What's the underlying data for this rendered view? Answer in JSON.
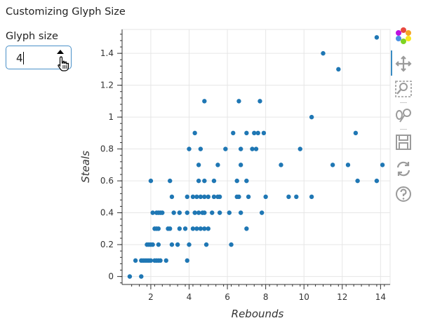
{
  "page": {
    "title": "Customizing Glyph Size"
  },
  "control": {
    "label": "Glyph size",
    "value": "4"
  },
  "colors": {
    "point": "#1f77b4",
    "grid": "#e6e6e6",
    "axis": "#333333",
    "toolbar_active": "#3a8cc3",
    "toolbar_icon": "#9b9b9b"
  },
  "toolbar": {
    "tools": [
      "bokeh-logo-icon",
      "pan-icon",
      "box-zoom-icon",
      "lasso-select-icon",
      "save-icon",
      "reset-icon",
      "help-icon"
    ],
    "active": "pan-icon"
  },
  "chart_data": {
    "type": "scatter",
    "title": "",
    "xlabel": "Rebounds",
    "ylabel": "Steals",
    "xlim": [
      0.5,
      14.5
    ],
    "ylim": [
      -0.05,
      1.55
    ],
    "xticks": [
      "2",
      "4",
      "6",
      "8",
      "10",
      "12",
      "14"
    ],
    "xtick_values": [
      2,
      4,
      6,
      8,
      10,
      12,
      14
    ],
    "yticks": [
      "0",
      "0.2",
      "0.4",
      "0.6",
      "0.8",
      "1",
      "1.2",
      "1.4"
    ],
    "ytick_values": [
      0,
      0.2,
      0.4,
      0.6,
      0.8,
      1.0,
      1.2,
      1.4
    ],
    "grid": true,
    "marker_size": 4,
    "points": [
      [
        0.9,
        0.0
      ],
      [
        1.5,
        0.0
      ],
      [
        1.2,
        0.1
      ],
      [
        1.5,
        0.1
      ],
      [
        1.6,
        0.1
      ],
      [
        1.7,
        0.1
      ],
      [
        1.8,
        0.1
      ],
      [
        1.9,
        0.1
      ],
      [
        2.0,
        0.1
      ],
      [
        2.2,
        0.1
      ],
      [
        2.3,
        0.1
      ],
      [
        2.4,
        0.1
      ],
      [
        2.5,
        0.1
      ],
      [
        2.8,
        0.1
      ],
      [
        3.9,
        0.1
      ],
      [
        1.8,
        0.2
      ],
      [
        1.9,
        0.2
      ],
      [
        2.0,
        0.2
      ],
      [
        2.1,
        0.2
      ],
      [
        2.4,
        0.2
      ],
      [
        3.1,
        0.2
      ],
      [
        3.4,
        0.2
      ],
      [
        4.0,
        0.2
      ],
      [
        4.9,
        0.2
      ],
      [
        6.2,
        0.2
      ],
      [
        2.2,
        0.3
      ],
      [
        2.3,
        0.3
      ],
      [
        2.4,
        0.3
      ],
      [
        2.9,
        0.3
      ],
      [
        3.0,
        0.3
      ],
      [
        3.5,
        0.3
      ],
      [
        3.8,
        0.3
      ],
      [
        4.2,
        0.3
      ],
      [
        4.4,
        0.3
      ],
      [
        4.6,
        0.3
      ],
      [
        4.8,
        0.3
      ],
      [
        5.0,
        0.3
      ],
      [
        7.0,
        0.3
      ],
      [
        2.1,
        0.4
      ],
      [
        2.3,
        0.4
      ],
      [
        2.4,
        0.4
      ],
      [
        2.5,
        0.4
      ],
      [
        2.6,
        0.4
      ],
      [
        3.2,
        0.4
      ],
      [
        3.5,
        0.4
      ],
      [
        3.9,
        0.4
      ],
      [
        4.3,
        0.4
      ],
      [
        4.5,
        0.4
      ],
      [
        4.7,
        0.4
      ],
      [
        4.8,
        0.4
      ],
      [
        5.2,
        0.4
      ],
      [
        5.6,
        0.4
      ],
      [
        6.1,
        0.4
      ],
      [
        6.7,
        0.4
      ],
      [
        7.8,
        0.4
      ],
      [
        3.1,
        0.5
      ],
      [
        3.9,
        0.5
      ],
      [
        4.2,
        0.5
      ],
      [
        4.4,
        0.5
      ],
      [
        4.6,
        0.5
      ],
      [
        4.8,
        0.5
      ],
      [
        5.0,
        0.5
      ],
      [
        5.3,
        0.5
      ],
      [
        5.5,
        0.5
      ],
      [
        5.6,
        0.5
      ],
      [
        6.5,
        0.5
      ],
      [
        6.6,
        0.5
      ],
      [
        7.1,
        0.5
      ],
      [
        8.0,
        0.5
      ],
      [
        9.2,
        0.5
      ],
      [
        9.6,
        0.5
      ],
      [
        10.4,
        0.5
      ],
      [
        2.0,
        0.6
      ],
      [
        3.0,
        0.6
      ],
      [
        4.5,
        0.6
      ],
      [
        4.8,
        0.6
      ],
      [
        5.3,
        0.6
      ],
      [
        6.5,
        0.6
      ],
      [
        7.0,
        0.6
      ],
      [
        12.8,
        0.6
      ],
      [
        13.8,
        0.6
      ],
      [
        4.5,
        0.7
      ],
      [
        5.5,
        0.7
      ],
      [
        6.7,
        0.7
      ],
      [
        8.8,
        0.7
      ],
      [
        11.5,
        0.7
      ],
      [
        12.3,
        0.7
      ],
      [
        14.1,
        0.7
      ],
      [
        4.0,
        0.8
      ],
      [
        4.6,
        0.8
      ],
      [
        5.9,
        0.8
      ],
      [
        6.7,
        0.8
      ],
      [
        7.3,
        0.8
      ],
      [
        7.5,
        0.8
      ],
      [
        9.8,
        0.8
      ],
      [
        4.3,
        0.9
      ],
      [
        6.3,
        0.9
      ],
      [
        7.0,
        0.9
      ],
      [
        7.4,
        0.9
      ],
      [
        7.6,
        0.9
      ],
      [
        7.9,
        0.9
      ],
      [
        12.7,
        0.9
      ],
      [
        10.4,
        1.0
      ],
      [
        4.8,
        1.1
      ],
      [
        6.6,
        1.1
      ],
      [
        7.7,
        1.1
      ],
      [
        11.8,
        1.3
      ],
      [
        11.0,
        1.4
      ],
      [
        13.8,
        1.5
      ]
    ]
  }
}
